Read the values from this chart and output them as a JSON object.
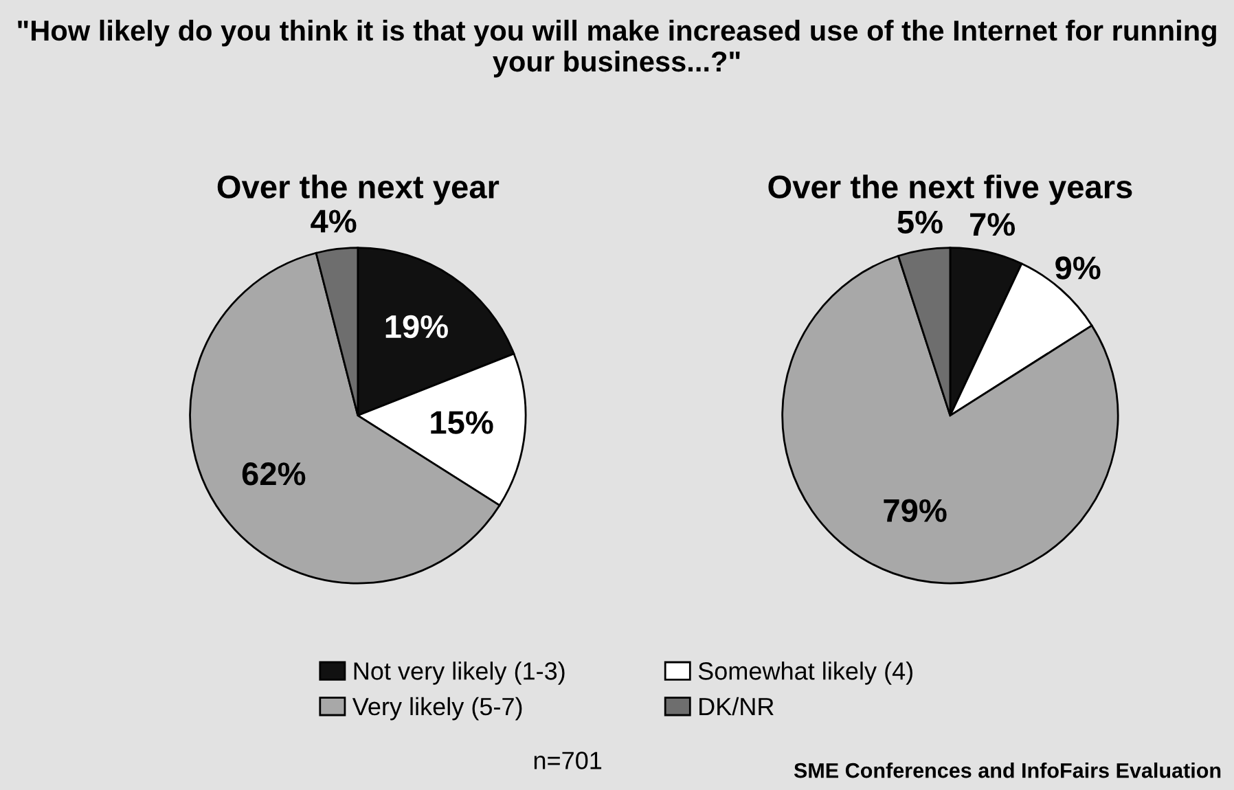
{
  "chart_data": [
    {
      "type": "pie",
      "title": "Over the next year",
      "categories": [
        "Not very likely (1-3)",
        "Somewhat likely (4)",
        "Very likely (5-7)",
        "DK/NR"
      ],
      "values": [
        19,
        15,
        62,
        4
      ],
      "value_labels": [
        "19%",
        "15%",
        "62%",
        "4%"
      ],
      "colors": [
        "#111111",
        "#ffffff",
        "#a8a8a8",
        "#6e6e6e"
      ],
      "legend": "bottom",
      "annotations": [
        "\"How likely do you think it is that you will make increased use of the Internet for running your business...?\""
      ]
    },
    {
      "type": "pie",
      "title": "Over the next five years",
      "values": [
        7,
        9,
        79,
        5
      ],
      "value_labels": [
        "7%",
        "9%",
        "79%",
        "5%"
      ],
      "colors": [
        "#111111",
        "#ffffff",
        "#a8a8a8",
        "#6e6e6e"
      ],
      "annotations": [
        "n=701",
        "SME Conferences and InfoFairs Evaluation"
      ]
    }
  ]
}
